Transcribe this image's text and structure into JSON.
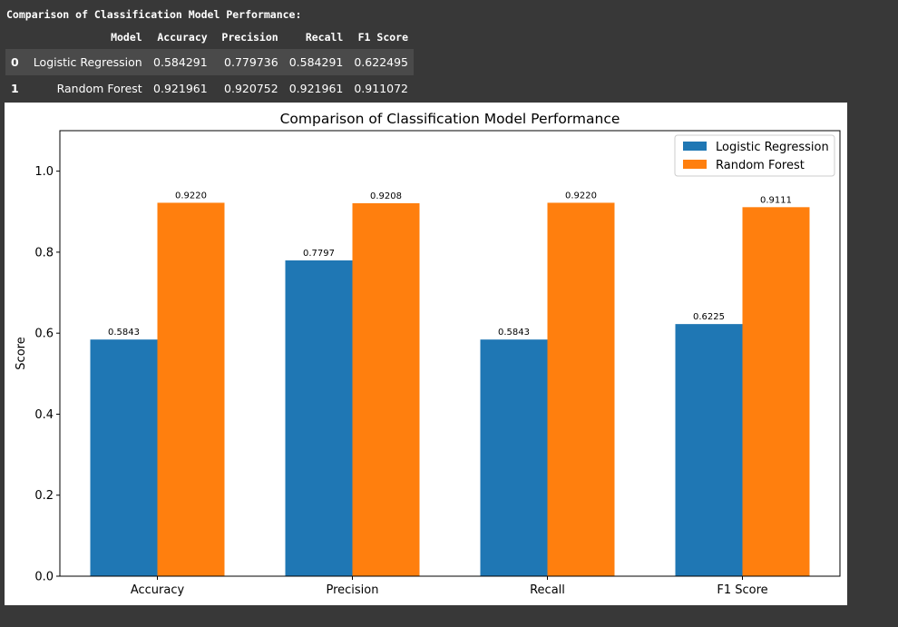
{
  "output": {
    "heading": "Comparison of Classification Model Performance:"
  },
  "table": {
    "columns": [
      "",
      "Model",
      "Accuracy",
      "Precision",
      "Recall",
      "F1 Score"
    ],
    "rows": [
      {
        "index": "0",
        "model": "Logistic Regression",
        "accuracy": "0.584291",
        "precision": "0.779736",
        "recall": "0.584291",
        "f1": "0.622495"
      },
      {
        "index": "1",
        "model": "Random Forest",
        "accuracy": "0.921961",
        "precision": "0.920752",
        "recall": "0.921961",
        "f1": "0.911072"
      }
    ]
  },
  "chart_data": {
    "type": "bar",
    "title": "Comparison of Classification Model Performance",
    "xlabel": "",
    "ylabel": "Score",
    "categories": [
      "Accuracy",
      "Precision",
      "Recall",
      "F1 Score"
    ],
    "series": [
      {
        "name": "Logistic Regression",
        "values": [
          0.5843,
          0.7797,
          0.5843,
          0.6225
        ],
        "labels": [
          "0.5843",
          "0.7797",
          "0.5843",
          "0.6225"
        ],
        "color": "#1f77b4"
      },
      {
        "name": "Random Forest",
        "values": [
          0.922,
          0.9208,
          0.922,
          0.9111
        ],
        "labels": [
          "0.9220",
          "0.9208",
          "0.9220",
          "0.9111"
        ],
        "color": "#ff7f0e"
      }
    ],
    "ylim": [
      0,
      1.1
    ],
    "yticks": [
      "0.0",
      "0.2",
      "0.4",
      "0.6",
      "0.8",
      "1.0"
    ],
    "grid": false,
    "legend_position": "top-right"
  }
}
